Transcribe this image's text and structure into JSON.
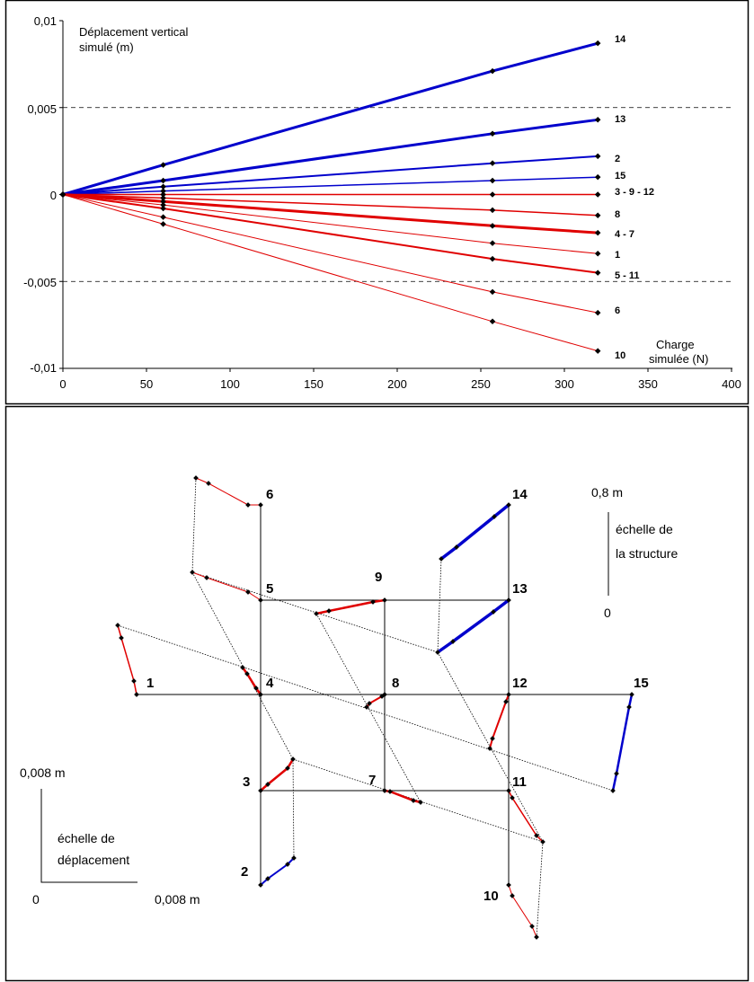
{
  "chart_data": [
    {
      "type": "line",
      "title": "",
      "ylabel_lines": [
        "Déplacement vertical",
        "simulé (m)"
      ],
      "xlabel_lines": [
        "Charge",
        "simulée (N)"
      ],
      "xlim": [
        0,
        400
      ],
      "ylim": [
        -0.01,
        0.01
      ],
      "xticks": [
        "0",
        "50",
        "100",
        "150",
        "200",
        "250",
        "300",
        "350",
        "400"
      ],
      "yticks": [
        "0,01",
        "0,005",
        "0",
        "-0,005",
        "-0,01"
      ],
      "dashed_gridlines_y": [
        0.005,
        -0.005,
        -0.01
      ],
      "x": [
        0,
        60,
        257,
        320
      ],
      "series": [
        {
          "name": "14",
          "color": "#0000cc",
          "width": 3,
          "values": [
            0,
            0.0017,
            0.0071,
            0.0087
          ]
        },
        {
          "name": "13",
          "color": "#0000cc",
          "width": 3,
          "values": [
            0,
            0.0008,
            0.0035,
            0.0043
          ]
        },
        {
          "name": "2",
          "color": "#0000cc",
          "width": 2,
          "values": [
            0,
            0.00045,
            0.0018,
            0.0022
          ]
        },
        {
          "name": "15",
          "color": "#0000cc",
          "width": 1.5,
          "values": [
            0,
            0.0002,
            0.0008,
            0.001
          ]
        },
        {
          "name": "3 - 9 - 12",
          "color": "#e00000",
          "width": 1.5,
          "values": [
            0,
            0,
            0,
            0
          ]
        },
        {
          "name": "8",
          "color": "#e00000",
          "width": 1.5,
          "values": [
            0,
            -0.0002,
            -0.0009,
            -0.0012
          ]
        },
        {
          "name": "4 - 7",
          "color": "#e00000",
          "width": 3,
          "values": [
            0,
            -0.0004,
            -0.0018,
            -0.0022
          ]
        },
        {
          "name": "1",
          "color": "#e00000",
          "width": 1,
          "values": [
            0,
            -0.0006,
            -0.0028,
            -0.0034
          ]
        },
        {
          "name": "5 - 11",
          "color": "#e00000",
          "width": 2,
          "values": [
            0,
            -0.0008,
            -0.0037,
            -0.0045
          ]
        },
        {
          "name": "6",
          "color": "#e00000",
          "width": 1,
          "values": [
            0,
            -0.0013,
            -0.0056,
            -0.0068
          ]
        },
        {
          "name": "10",
          "color": "#e00000",
          "width": 1,
          "values": [
            0,
            -0.0017,
            -0.0073,
            -0.009
          ]
        }
      ]
    },
    {
      "type": "diagram",
      "nodes": [
        "1",
        "2",
        "3",
        "4",
        "5",
        "6",
        "7",
        "8",
        "9",
        "10",
        "11",
        "12",
        "13",
        "14",
        "15"
      ],
      "structure_scale": {
        "value": "0,8 m",
        "zero": "0",
        "label_lines": [
          "échelle de",
          "la structure"
        ]
      },
      "displacement_scale": {
        "value_y": "0,008 m",
        "value_x": "0,008 m",
        "zero": "0",
        "label_lines": [
          "échelle de",
          "déplacement"
        ]
      },
      "colors": {
        "positive": "#0000cc",
        "negative": "#e00000"
      }
    }
  ]
}
